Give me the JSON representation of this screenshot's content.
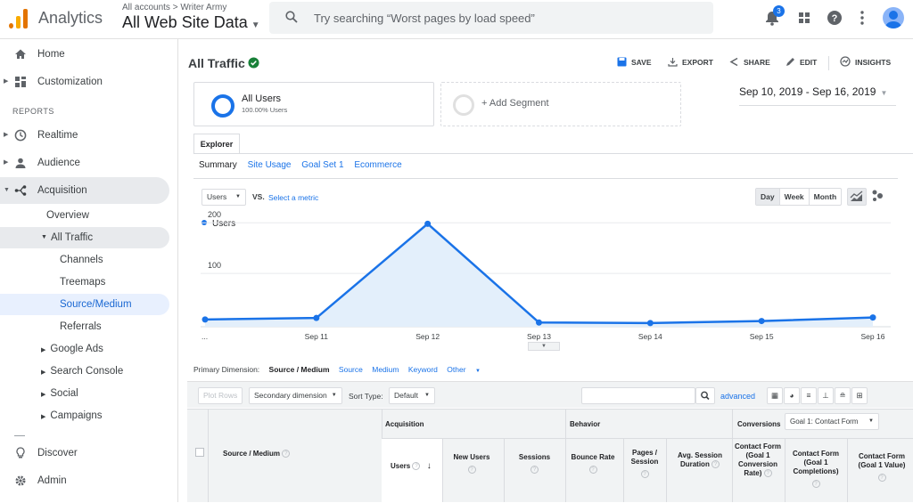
{
  "header": {
    "app_title": "Analytics",
    "breadcrumb": "All accounts > Writer Army",
    "property": "All Web Site Data",
    "search_placeholder": "Try searching “Worst pages by load speed”",
    "notification_count": "3"
  },
  "sidebar": {
    "reports_label": "REPORTS",
    "items": [
      {
        "label": "Home",
        "icon": "home-icon"
      },
      {
        "label": "Customization",
        "icon": "dashboard-icon"
      },
      {
        "label": "Realtime",
        "icon": "clock-icon"
      },
      {
        "label": "Audience",
        "icon": "person-icon"
      },
      {
        "label": "Acquisition",
        "icon": "acquisition-icon"
      },
      {
        "label": "Discover",
        "icon": "lightbulb-icon"
      },
      {
        "label": "Admin",
        "icon": "gear-icon"
      }
    ],
    "acquisition_sub": {
      "overview": "Overview",
      "all_traffic": "All Traffic",
      "channels": "Channels",
      "treemaps": "Treemaps",
      "source_medium": "Source/Medium",
      "referrals": "Referrals",
      "google_ads": "Google Ads",
      "search_console": "Search Console",
      "social": "Social",
      "campaigns": "Campaigns"
    }
  },
  "main": {
    "title": "All Traffic",
    "actions": {
      "save": "SAVE",
      "export": "EXPORT",
      "share": "SHARE",
      "edit": "EDIT",
      "insights": "INSIGHTS"
    },
    "segment": {
      "name": "All Users",
      "pct": "100.00% Users",
      "add": "+ Add Segment"
    },
    "date_range": "Sep 10, 2019 - Sep 16, 2019",
    "explorer_tab": "Explorer",
    "subtabs": [
      "Summary",
      "Site Usage",
      "Goal Set 1",
      "Ecommerce"
    ],
    "metric": "Users",
    "vs": "VS.",
    "select_metric": "Select a metric",
    "periods": [
      "Day",
      "Week",
      "Month"
    ],
    "primary_dimension": {
      "label": "Primary Dimension:",
      "options": [
        "Source / Medium",
        "Source",
        "Medium",
        "Keyword",
        "Other"
      ]
    },
    "table_toolbar": {
      "plot_rows": "Plot Rows",
      "secondary": "Secondary dimension",
      "sort_type": "Sort Type:",
      "sort_value": "Default",
      "advanced": "advanced"
    },
    "table": {
      "source_medium": "Source / Medium",
      "groups": {
        "acquisition": "Acquisition",
        "behavior": "Behavior",
        "conversions": "Conversions",
        "goal_select": "Goal 1: Contact Form"
      },
      "cols": {
        "users": "Users",
        "new_users": "New Users",
        "sessions": "Sessions",
        "bounce_rate": "Bounce Rate",
        "pages_session": "Pages / Session",
        "avg_session": "Avg. Session Duration",
        "conv_rate": "Contact Form (Goal 1 Conversion Rate)",
        "completions": "Contact Form (Goal 1 Completions)",
        "value": "Contact Form (Goal 1 Value)"
      }
    }
  },
  "chart_data": {
    "type": "area",
    "series": [
      {
        "name": "Users",
        "values": [
          9,
          12,
          198,
          3,
          2,
          6,
          13
        ]
      }
    ],
    "categories": [
      "...",
      "Sep 11",
      "Sep 12",
      "Sep 13",
      "Sep 14",
      "Sep 15",
      "Sep 16"
    ],
    "yticks": [
      100,
      200
    ],
    "ylim": [
      0,
      225
    ],
    "colors": {
      "line": "#1a73e8",
      "fill": "#e3effb"
    }
  }
}
